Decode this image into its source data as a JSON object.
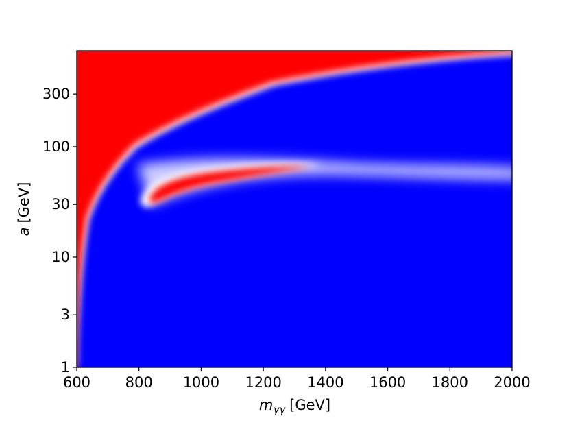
{
  "chart_data": {
    "type": "heatmap",
    "xlabel": {
      "symbol": "m",
      "subscript": "γγ",
      "unit": "[GeV]"
    },
    "ylabel": {
      "symbol": "a",
      "unit": "[GeV]"
    },
    "xlim": [
      600,
      2000
    ],
    "xticks": [
      600,
      800,
      1000,
      1200,
      1400,
      1600,
      1800,
      2000
    ],
    "ylim": [
      1,
      740
    ],
    "yticks": [
      1,
      3,
      10,
      30,
      100,
      300
    ],
    "ylog": true,
    "colors": {
      "low": "#0000ff",
      "mid": "#ffffff",
      "high": "#ff0000"
    }
  }
}
